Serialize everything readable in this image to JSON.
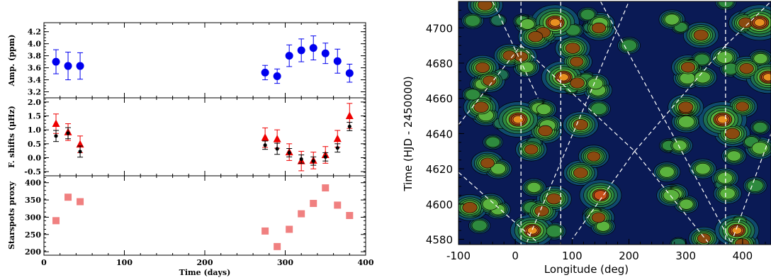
{
  "chart_data": [
    {
      "type": "scatter",
      "panel": "amplitude",
      "ylabel": "Amp. (ppm)",
      "ylim": [
        3.1,
        4.35
      ],
      "yticks": [
        3.2,
        3.4,
        3.6,
        3.8,
        4.0,
        4.2
      ],
      "ytick_labels": [
        "3.2",
        "3.4",
        "3.6",
        "3.8",
        "4.0",
        "4.2"
      ],
      "xlim": [
        0,
        400
      ],
      "series": [
        {
          "marker": "circle",
          "color": "#0000ee",
          "x": [
            15,
            30,
            45,
            275,
            290,
            305,
            320,
            335,
            350,
            365,
            380
          ],
          "y": [
            3.7,
            3.63,
            3.63,
            3.52,
            3.46,
            3.8,
            3.89,
            3.93,
            3.84,
            3.71,
            3.51
          ],
          "err": [
            0.2,
            0.23,
            0.22,
            0.12,
            0.12,
            0.18,
            0.19,
            0.2,
            0.17,
            0.2,
            0.15
          ]
        }
      ]
    },
    {
      "type": "scatter",
      "panel": "frequency",
      "ylabel": "F. shifts (μHz)",
      "ylim": [
        -0.65,
        2.15
      ],
      "yticks": [
        -0.5,
        0.0,
        0.5,
        1.0,
        1.5,
        2.0
      ],
      "ytick_labels": [
        "-0.5",
        "0.0",
        "0.5",
        "1.0",
        "1.5",
        "2.0"
      ],
      "xlim": [
        0,
        400
      ],
      "series": [
        {
          "marker": "triangle",
          "color": "#ee0000",
          "x": [
            15,
            30,
            45,
            275,
            290,
            305,
            320,
            335,
            350,
            365,
            380
          ],
          "y": [
            1.22,
            0.92,
            0.48,
            0.72,
            0.67,
            0.2,
            -0.12,
            -0.1,
            0.1,
            0.68,
            1.5
          ],
          "err": [
            0.35,
            0.3,
            0.3,
            0.35,
            0.33,
            0.3,
            0.35,
            0.3,
            0.3,
            0.3,
            0.45
          ]
        },
        {
          "marker": "dot",
          "color": "#000000",
          "x": [
            15,
            30,
            45,
            275,
            290,
            305,
            320,
            335,
            350,
            365,
            380
          ],
          "y": [
            0.78,
            0.88,
            0.22,
            0.45,
            0.32,
            0.18,
            -0.05,
            -0.12,
            0.03,
            0.35,
            1.12
          ],
          "err": [
            0.2,
            0.2,
            0.2,
            0.15,
            0.2,
            0.15,
            0.15,
            0.15,
            0.15,
            0.15,
            0.15
          ]
        }
      ]
    },
    {
      "type": "scatter",
      "panel": "starspots",
      "ylabel": "Starspots proxy",
      "xlabel": "Time (days)",
      "ylim": [
        190,
        420
      ],
      "yticks": [
        200,
        250,
        300,
        350,
        400
      ],
      "ytick_labels": [
        "200",
        "250",
        "300",
        "350",
        "400"
      ],
      "xlim": [
        0,
        400
      ],
      "xticks": [
        0,
        100,
        200,
        300,
        400
      ],
      "xtick_labels": [
        "0",
        "100",
        "200",
        "300",
        "400"
      ],
      "series": [
        {
          "marker": "square",
          "color": "#f08080",
          "x": [
            15,
            30,
            45,
            275,
            290,
            305,
            320,
            335,
            350,
            365,
            380
          ],
          "y": [
            290,
            358,
            345,
            260,
            215,
            265,
            310,
            340,
            385,
            335,
            305
          ]
        }
      ]
    },
    {
      "type": "heatmap",
      "xlabel": "Longitude (deg)",
      "ylabel": "Time (HJD - 2450000)",
      "xlim": [
        -100,
        450
      ],
      "ylim": [
        4577,
        4715
      ],
      "xticks": [
        -100,
        0,
        100,
        200,
        300,
        400
      ],
      "xtick_labels": [
        "-100",
        "0",
        "100",
        "200",
        "300",
        "400"
      ],
      "yticks": [
        4580,
        4600,
        4620,
        4640,
        4660,
        4680,
        4700
      ],
      "ytick_labels": [
        "4580",
        "4600",
        "4620",
        "4640",
        "4660",
        "4680",
        "4700"
      ],
      "colors": [
        "#0a1a55",
        "#0f4a6e",
        "#1e6e52",
        "#2e8a3e",
        "#5ab23e",
        "#8a4a10",
        "#c8501a",
        "#e89020"
      ],
      "vertical_lines": [
        10,
        80,
        370
      ],
      "spots": [
        {
          "lon": 5,
          "t": 4648,
          "s": 1.0
        },
        {
          "lon": 70,
          "t": 4703,
          "s": 1.0
        },
        {
          "lon": 85,
          "t": 4672,
          "s": 0.9
        },
        {
          "lon": 150,
          "t": 4605,
          "s": 0.85
        },
        {
          "lon": 30,
          "t": 4585,
          "s": 0.9
        },
        {
          "lon": -80,
          "t": 4598,
          "s": 0.7
        },
        {
          "lon": 365,
          "t": 4648,
          "s": 1.0
        },
        {
          "lon": 430,
          "t": 4703,
          "s": 1.0
        },
        {
          "lon": 445,
          "t": 4672,
          "s": 0.9
        },
        {
          "lon": 390,
          "t": 4585,
          "s": 0.9
        },
        {
          "lon": 115,
          "t": 4645,
          "s": 0.7
        },
        {
          "lon": -60,
          "t": 4655,
          "s": 0.7
        },
        {
          "lon": 300,
          "t": 4655,
          "s": 0.7
        },
        {
          "lon": 200,
          "t": 4690,
          "s": 0.4
        },
        {
          "lon": -30,
          "t": 4620,
          "s": 0.5
        },
        {
          "lon": 330,
          "t": 4620,
          "s": 0.5
        }
      ]
    }
  ]
}
